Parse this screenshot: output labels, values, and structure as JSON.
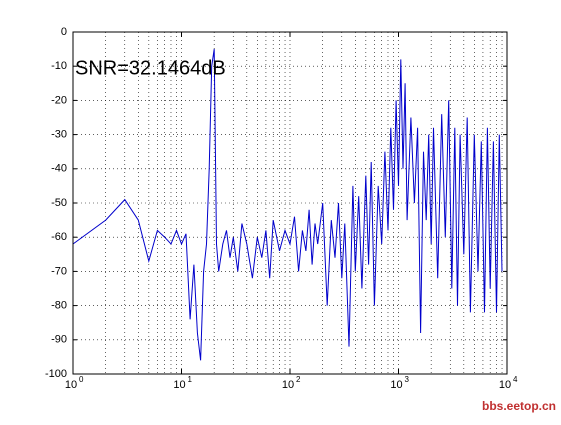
{
  "chart_data": {
    "type": "line",
    "annotation": "SNR=32.1464dB",
    "watermark": "bbs.eetop.cn",
    "x": [
      1,
      2,
      3,
      4,
      5,
      6,
      7,
      8,
      9,
      10,
      11,
      12,
      13,
      14,
      15,
      16,
      17,
      18,
      19,
      20,
      21,
      22,
      24,
      26,
      28,
      30,
      33,
      36,
      40,
      45,
      50,
      55,
      60,
      65,
      70,
      80,
      90,
      100,
      110,
      120,
      130,
      140,
      150,
      160,
      170,
      180,
      200,
      220,
      240,
      260,
      280,
      300,
      320,
      350,
      380,
      400,
      430,
      460,
      500,
      530,
      560,
      600,
      650,
      700,
      750,
      800,
      850,
      900,
      950,
      1000,
      1050,
      1100,
      1150,
      1200,
      1300,
      1400,
      1500,
      1600,
      1700,
      1800,
      1900,
      2000,
      2100,
      2300,
      2500,
      2700,
      2900,
      3100,
      3300,
      3500,
      3700,
      4000,
      4300,
      4600,
      5000,
      5400,
      5800,
      6200,
      6600,
      7000,
      7500,
      8000,
      8500,
      9000
    ],
    "series": [
      {
        "color": "#0000cc",
        "values": [
          -62,
          -55,
          -49,
          -55,
          -67,
          -58,
          -60,
          -62,
          -58,
          -62,
          -59,
          -84,
          -68,
          -88,
          -96,
          -70,
          -62,
          -40,
          -10,
          -5,
          -62,
          -70,
          -62,
          -58,
          -66,
          -60,
          -70,
          -56,
          -62,
          -72,
          -60,
          -66,
          -58,
          -72,
          -55,
          -64,
          -58,
          -62,
          -54,
          -70,
          -58,
          -64,
          -52,
          -68,
          -56,
          -62,
          -50,
          -80,
          -55,
          -66,
          -50,
          -72,
          -56,
          -92,
          -45,
          -70,
          -48,
          -75,
          -42,
          -68,
          -38,
          -80,
          -45,
          -62,
          -35,
          -58,
          -28,
          -52,
          -20,
          -45,
          -8,
          -40,
          -15,
          -55,
          -25,
          -50,
          -28,
          -88,
          -35,
          -55,
          -30,
          -62,
          -28,
          -72,
          -24,
          -60,
          -20,
          -75,
          -28,
          -80,
          -30,
          -65,
          -25,
          -82,
          -30,
          -70,
          -32,
          -82,
          -28,
          -75,
          -32,
          -82,
          -30,
          -70
        ]
      }
    ],
    "xscale": "log",
    "xlim": [
      1,
      10000
    ],
    "xticks": [
      {
        "value": 1,
        "label": "10",
        "exponent": "0"
      },
      {
        "value": 10,
        "label": "10",
        "exponent": "1"
      },
      {
        "value": 100,
        "label": "10",
        "exponent": "2"
      },
      {
        "value": 1000,
        "label": "10",
        "exponent": "3"
      },
      {
        "value": 10000,
        "label": "10",
        "exponent": "4"
      }
    ],
    "ylim": [
      -100,
      0
    ],
    "yticks": [
      0,
      -10,
      -20,
      -30,
      -40,
      -50,
      -60,
      -70,
      -80,
      -90,
      -100
    ],
    "grid": true
  }
}
